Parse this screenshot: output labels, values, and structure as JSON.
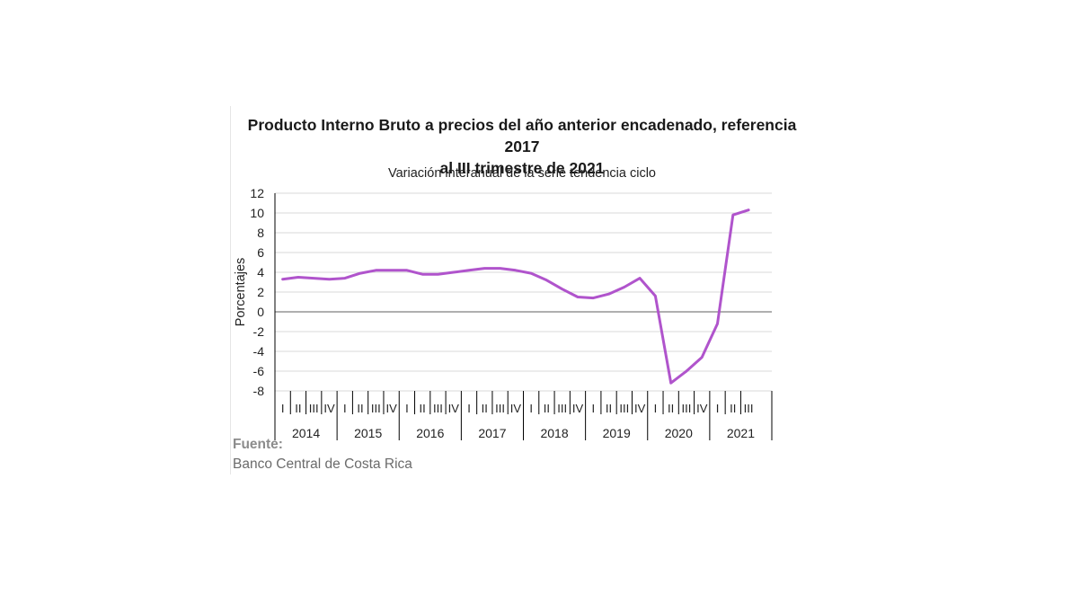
{
  "colors": {
    "line": "#b054cc",
    "grid": "#d9d9d9",
    "zero_line": "#7f7f7f",
    "axis": "#000000"
  },
  "source": {
    "label": "Fuente:",
    "name": "Banco Central de Costa Rica"
  },
  "chart_data": {
    "type": "line",
    "title": "Producto Interno Bruto a precios del año anterior encadenado, referencia 2017 al III trimestre de 2021",
    "title_lines": [
      "Producto Interno Bruto a precios del año anterior encadenado, referencia 2017",
      "al III trimestre de 2021"
    ],
    "subtitle": "Variación interanual de la serie tendencia ciclo",
    "ylabel": "Porcentajes",
    "ylim": [
      -8,
      12
    ],
    "yticks": [
      -8,
      -6,
      -4,
      -2,
      0,
      2,
      4,
      6,
      8,
      10,
      12
    ],
    "grid": true,
    "legend": "none",
    "quarter_labels": [
      "I",
      "II",
      "III",
      "IV"
    ],
    "years": [
      "2014",
      "2015",
      "2016",
      "2017",
      "2018",
      "2019",
      "2020",
      "2021"
    ],
    "quarters_per_year": [
      4,
      4,
      4,
      4,
      4,
      4,
      4,
      3
    ],
    "values": [
      3.3,
      3.5,
      3.4,
      3.3,
      3.4,
      3.9,
      4.2,
      4.2,
      4.2,
      3.8,
      3.8,
      4.0,
      4.2,
      4.4,
      4.4,
      4.2,
      3.9,
      3.2,
      2.3,
      1.5,
      1.4,
      1.8,
      2.5,
      3.4,
      1.6,
      -7.2,
      -6.0,
      -4.6,
      -1.2,
      9.8,
      10.3
    ]
  }
}
